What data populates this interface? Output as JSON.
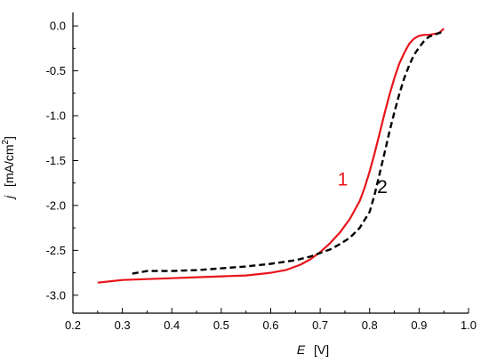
{
  "chart_data": {
    "type": "line",
    "title": "",
    "xlabel": {
      "var": "E",
      "unit": "[V]"
    },
    "ylabel": {
      "var": "j",
      "unit_pre": "[mA/cm",
      "unit_sup": "2",
      "unit_post": "]"
    },
    "xlim": [
      0.2,
      1.0
    ],
    "ylim": [
      -3.2,
      0.15
    ],
    "x_ticks": [
      0.2,
      0.3,
      0.4,
      0.5,
      0.6,
      0.7,
      0.8,
      0.9,
      1.0
    ],
    "x_tick_labels": [
      "0.2",
      "0.3",
      "0.4",
      "0.5",
      "0.6",
      "0.7",
      "0.8",
      "0.9",
      "1.0"
    ],
    "y_ticks": [
      0.0,
      -0.5,
      -1.0,
      -1.5,
      -2.0,
      -2.5,
      -3.0
    ],
    "y_tick_labels": [
      "0.0",
      "-0.5",
      "-1.0",
      "-1.5",
      "-2.0",
      "-2.5",
      "-3.0"
    ],
    "grid": false,
    "series": [
      {
        "label": "1",
        "color": "#e8141b",
        "style": "solid",
        "label_at": [
          0.735,
          -1.78
        ],
        "x": [
          0.25,
          0.3,
          0.35,
          0.4,
          0.45,
          0.5,
          0.55,
          0.6,
          0.63,
          0.66,
          0.68,
          0.7,
          0.72,
          0.74,
          0.76,
          0.78,
          0.79,
          0.8,
          0.81,
          0.82,
          0.83,
          0.84,
          0.85,
          0.86,
          0.87,
          0.88,
          0.89,
          0.9,
          0.91,
          0.92,
          0.93,
          0.94,
          0.95
        ],
        "y": [
          -2.86,
          -2.83,
          -2.82,
          -2.81,
          -2.8,
          -2.79,
          -2.78,
          -2.75,
          -2.72,
          -2.66,
          -2.6,
          -2.52,
          -2.42,
          -2.3,
          -2.15,
          -1.95,
          -1.8,
          -1.62,
          -1.42,
          -1.2,
          -0.98,
          -0.77,
          -0.58,
          -0.42,
          -0.3,
          -0.2,
          -0.14,
          -0.11,
          -0.1,
          -0.1,
          -0.09,
          -0.08,
          -0.03
        ]
      },
      {
        "label": "2",
        "color": "#000000",
        "style": "dashed",
        "label_at": [
          0.815,
          -1.86
        ],
        "x": [
          0.32,
          0.35,
          0.4,
          0.45,
          0.5,
          0.55,
          0.6,
          0.65,
          0.68,
          0.7,
          0.72,
          0.74,
          0.76,
          0.78,
          0.8,
          0.81,
          0.82,
          0.83,
          0.84,
          0.85,
          0.86,
          0.87,
          0.88,
          0.89,
          0.9,
          0.91,
          0.92,
          0.93,
          0.94,
          0.95
        ],
        "y": [
          -2.76,
          -2.73,
          -2.73,
          -2.72,
          -2.7,
          -2.68,
          -2.65,
          -2.61,
          -2.57,
          -2.53,
          -2.49,
          -2.43,
          -2.36,
          -2.25,
          -2.07,
          -1.88,
          -1.65,
          -1.42,
          -1.18,
          -0.96,
          -0.76,
          -0.58,
          -0.44,
          -0.32,
          -0.24,
          -0.17,
          -0.12,
          -0.1,
          -0.08,
          -0.06
        ]
      }
    ]
  }
}
